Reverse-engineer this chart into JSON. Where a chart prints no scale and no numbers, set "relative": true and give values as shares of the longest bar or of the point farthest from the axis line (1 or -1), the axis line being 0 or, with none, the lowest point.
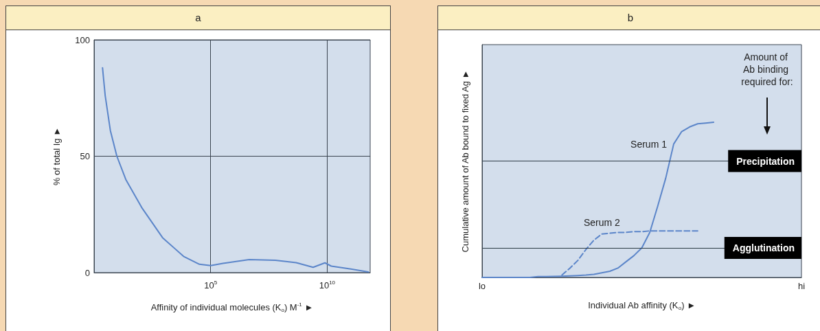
{
  "chart_data": [
    {
      "type": "line",
      "title": "a",
      "xlabel": "Affinity of individual molecules (K$_{o}$) M$^{-1}$ ►",
      "ylabel": "% of total Ig ►",
      "log": "x",
      "xlim": [
        1,
        700000000000
      ],
      "xticks": [
        {
          "value": 100000,
          "label": "10$^{5}$"
        },
        {
          "value": 10000000000,
          "label": "10$^{10}$"
        }
      ],
      "ylim": [
        0,
        100
      ],
      "yticks": [
        0,
        50,
        100
      ],
      "grid": true,
      "marker": "none",
      "x": [
        2.3,
        3,
        5,
        9.5,
        23,
        110,
        870,
        6900,
        33000,
        100000,
        340000,
        4500000,
        60000000,
        470000000,
        2500000000,
        8000000000,
        15000000000,
        83000000000,
        580000000000
      ],
      "series": [
        {
          "color": "#5b85c9",
          "values": [
            88,
            76,
            61,
            50,
            40,
            28,
            15,
            7,
            3.6,
            3,
            4,
            5.6,
            5.3,
            4.3,
            2.3,
            4.2,
            2.8,
            1.7,
            0.3
          ]
        }
      ]
    },
    {
      "type": "line",
      "title": "b",
      "xlabel": "Individual Ab affinity (K$_{o}$) ►",
      "ylabel": "Cumulative amount of Ab bound to fixed Ag ►",
      "relative": true,
      "marker": "none",
      "annotations": [
        "Amount of Ab binding required for:"
      ],
      "categories": [
        "lo",
        null,
        null,
        null,
        null,
        null,
        null,
        null,
        null,
        null,
        null,
        null,
        null,
        null,
        null,
        null,
        null,
        null,
        null,
        null,
        null,
        null,
        null,
        null,
        null,
        null,
        null,
        null,
        null,
        null,
        null,
        null,
        null,
        null,
        null,
        null,
        null,
        null,
        null,
        null,
        "hi"
      ],
      "ref_lines": [
        {
          "axis": "y",
          "value": 0.75,
          "label": "Precipitation",
          "color": "#2b3a44"
        },
        {
          "axis": "y",
          "value": 0.19,
          "label": "Agglutination",
          "color": "#2b3a44"
        }
      ],
      "series": [
        {
          "name": "Serum 1",
          "color": "#5b85c9",
          "line_style": "solid",
          "values": [
            0,
            0,
            0,
            0,
            0,
            0,
            0,
            0.005,
            0.005,
            0.007,
            0.008,
            0.01,
            0.012,
            0.015,
            0.02,
            0.03,
            0.04,
            0.06,
            0.1,
            0.14,
            0.19,
            0.29,
            0.46,
            0.64,
            0.86,
            0.94,
            0.97,
            0.99,
            0.995,
            1,
            null,
            null,
            null,
            null,
            null,
            null,
            null,
            null,
            null,
            null,
            null
          ]
        },
        {
          "name": "Serum 2",
          "color": "#5b85c9",
          "line_style": "dashed",
          "values": [
            null,
            null,
            null,
            null,
            null,
            null,
            null,
            null,
            null,
            null,
            0.015,
            0.06,
            0.11,
            0.18,
            0.24,
            0.28,
            0.285,
            0.29,
            0.29,
            0.295,
            0.295,
            0.3,
            0.3,
            0.3,
            0.3,
            0.3,
            0.3,
            0.3,
            null,
            null,
            null,
            null,
            null,
            null,
            null,
            null,
            null,
            null,
            null,
            null,
            null
          ]
        }
      ]
    }
  ]
}
